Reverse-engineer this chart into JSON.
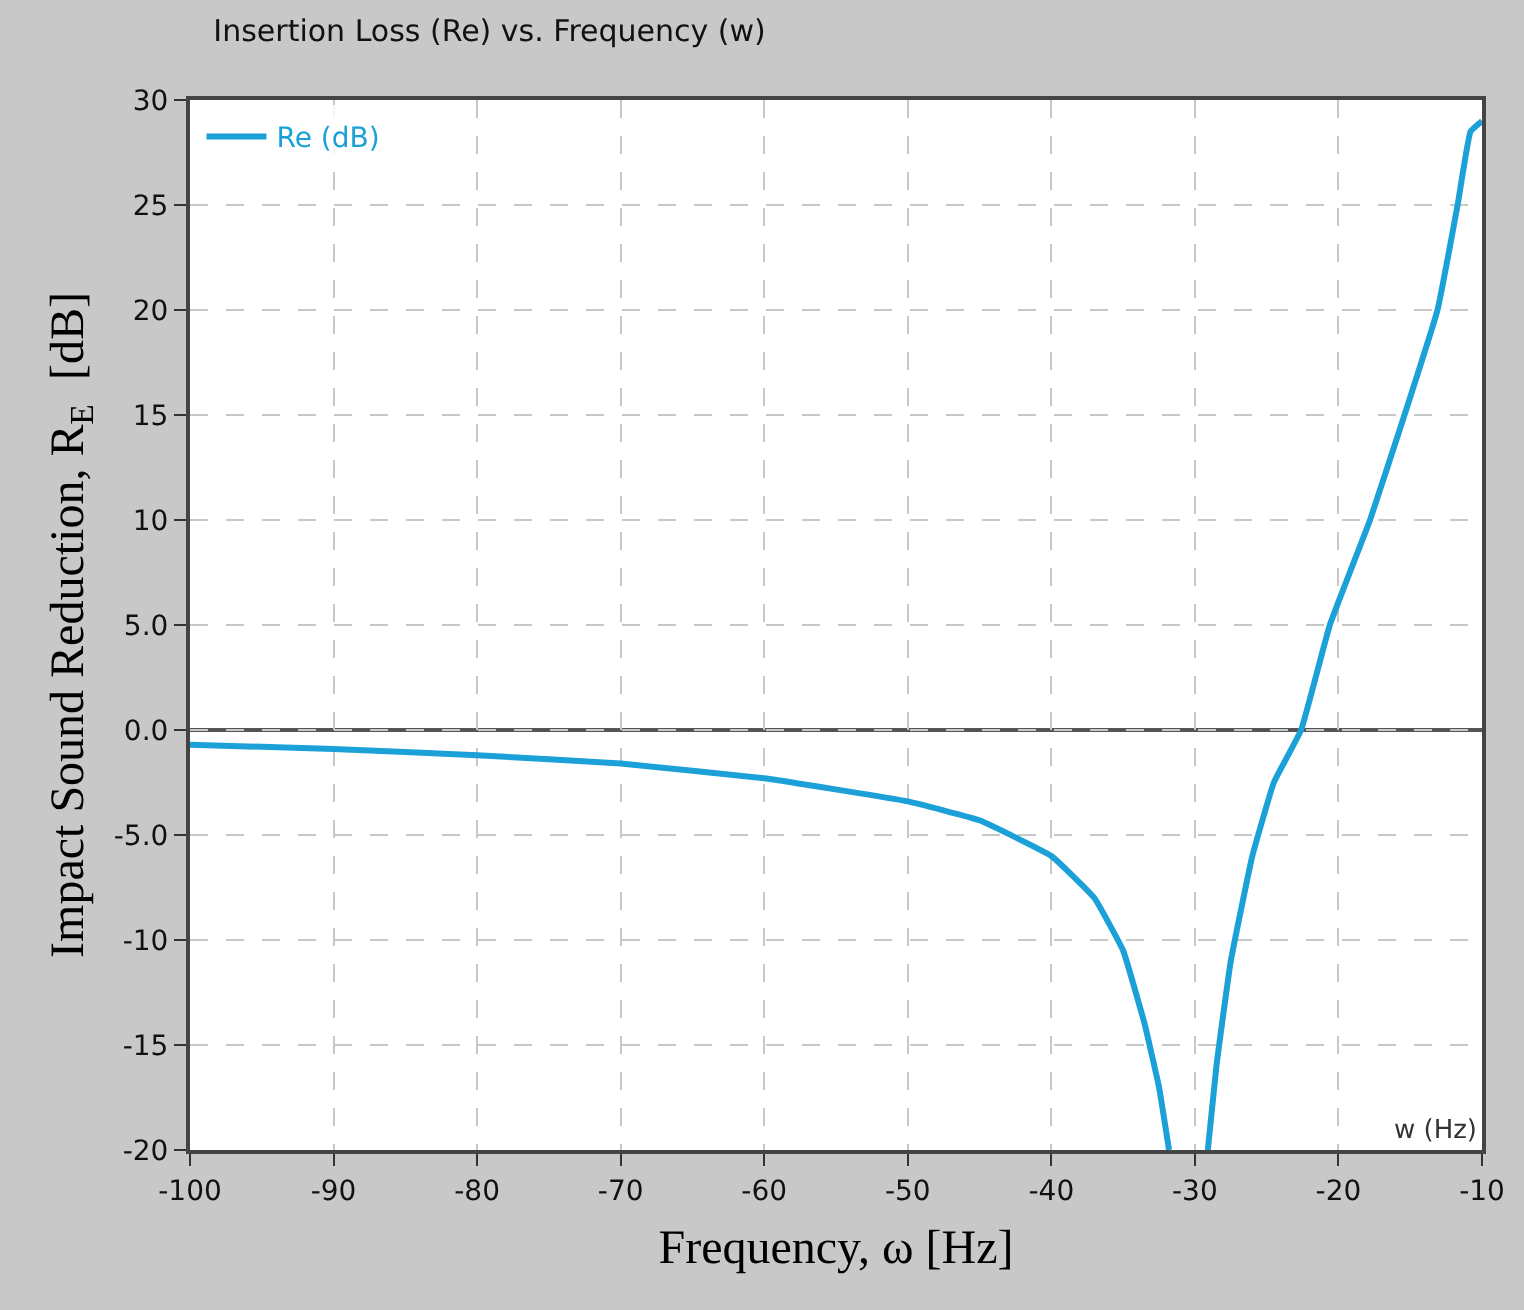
{
  "chart_data": {
    "type": "line",
    "title": "Insertion Loss (Re) vs. Frequency (w)",
    "xlabel": "Frequency, ω [Hz]",
    "ylabel": "Impact Sound Reduction, R$_{E}$  [dB]",
    "annotations": [
      "w (Hz)"
    ],
    "series": [
      {
        "name": "Re (dB)",
        "color": "#1ba1d8",
        "x": [
          -100,
          -90,
          -80,
          -70,
          -60,
          -50,
          -45,
          -40,
          -37,
          -35,
          -33.5,
          -32.5,
          -31.8,
          -30.5,
          -29.1,
          -28.5,
          -27.5,
          -26,
          -24.5,
          -22.6,
          -20.6,
          -17.8,
          -15.4,
          -13.1,
          -11.7,
          -10.8,
          -10
        ],
        "values": [
          -0.7,
          -0.9,
          -1.2,
          -1.6,
          -2.3,
          -3.4,
          -4.3,
          -6.0,
          -8.0,
          -10.5,
          -14,
          -17,
          -20,
          null,
          -20,
          -16,
          -11,
          -6,
          -2.5,
          0,
          5,
          10,
          15,
          20,
          25,
          28.5,
          29
        ]
      }
    ],
    "xlim": [
      -100,
      -10
    ],
    "xticks": [
      -100,
      -90,
      -80,
      -70,
      -60,
      -50,
      -40,
      -30,
      -20,
      -10
    ],
    "ylim": [
      -20,
      30
    ],
    "yticks": [
      {
        "value": -20,
        "label": "-20"
      },
      {
        "value": -15,
        "label": "-15"
      },
      {
        "value": -10,
        "label": "-10"
      },
      {
        "value": -5,
        "label": "-5.0"
      },
      {
        "value": 0,
        "label": "0.0"
      },
      {
        "value": 5,
        "label": "5.0"
      },
      10,
      15,
      20,
      25,
      30
    ],
    "ref_lines": [
      {
        "axis": "y",
        "value": 0,
        "color": "#555555",
        "line_style": "solid"
      }
    ],
    "grid": true,
    "legend": "top left",
    "marker": "none",
    "line_style": "solid"
  }
}
